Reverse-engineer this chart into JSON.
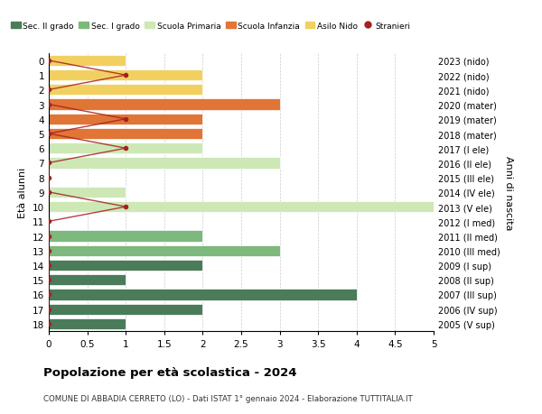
{
  "ages": [
    18,
    17,
    16,
    15,
    14,
    13,
    12,
    11,
    10,
    9,
    8,
    7,
    6,
    5,
    4,
    3,
    2,
    1,
    0
  ],
  "years": [
    "2005 (V sup)",
    "2006 (IV sup)",
    "2007 (III sup)",
    "2008 (II sup)",
    "2009 (I sup)",
    "2010 (III med)",
    "2011 (II med)",
    "2012 (I med)",
    "2013 (V ele)",
    "2014 (IV ele)",
    "2015 (III ele)",
    "2016 (II ele)",
    "2017 (I ele)",
    "2018 (mater)",
    "2019 (mater)",
    "2020 (mater)",
    "2021 (nido)",
    "2022 (nido)",
    "2023 (nido)"
  ],
  "bar_values": [
    1,
    2,
    4,
    1,
    2,
    3,
    2,
    0,
    5,
    1,
    0,
    3,
    2,
    2,
    2,
    3,
    2,
    2,
    1
  ],
  "bar_colors": [
    "#4a7c59",
    "#4a7c59",
    "#4a7c59",
    "#4a7c59",
    "#4a7c59",
    "#7db87d",
    "#7db87d",
    "#7db87d",
    "#cde8b5",
    "#cde8b5",
    "#cde8b5",
    "#cde8b5",
    "#cde8b5",
    "#e07535",
    "#e07535",
    "#e07535",
    "#f2d060",
    "#f2d060",
    "#f2d060"
  ],
  "stranieri_values": [
    0,
    0,
    0,
    0,
    0,
    0,
    0,
    0,
    1,
    0,
    0,
    0,
    1,
    0,
    1,
    0,
    0,
    1,
    0
  ],
  "stranieri_color": "#a82020",
  "xlim": [
    0,
    5.0
  ],
  "xticks": [
    0,
    0.5,
    1.0,
    1.5,
    2.0,
    2.5,
    3.0,
    3.5,
    4.0,
    4.5,
    5.0
  ],
  "xlabel_left": "Età alunni",
  "xlabel_right": "Anni di nascita",
  "title": "Popolazione per età scolastica - 2024",
  "subtitle": "COMUNE DI ABBADIA CERRETO (LO) - Dati ISTAT 1° gennaio 2024 - Elaborazione TUTTITALIA.IT",
  "legend_labels": [
    "Sec. II grado",
    "Sec. I grado",
    "Scuola Primaria",
    "Scuola Infanzia",
    "Asilo Nido",
    "Stranieri"
  ],
  "legend_colors": [
    "#4a7c59",
    "#7db87d",
    "#cde8b5",
    "#e07535",
    "#f2d060",
    "#a82020"
  ],
  "bg_color": "#ffffff",
  "bar_height": 0.75,
  "grid_color": "#cccccc"
}
